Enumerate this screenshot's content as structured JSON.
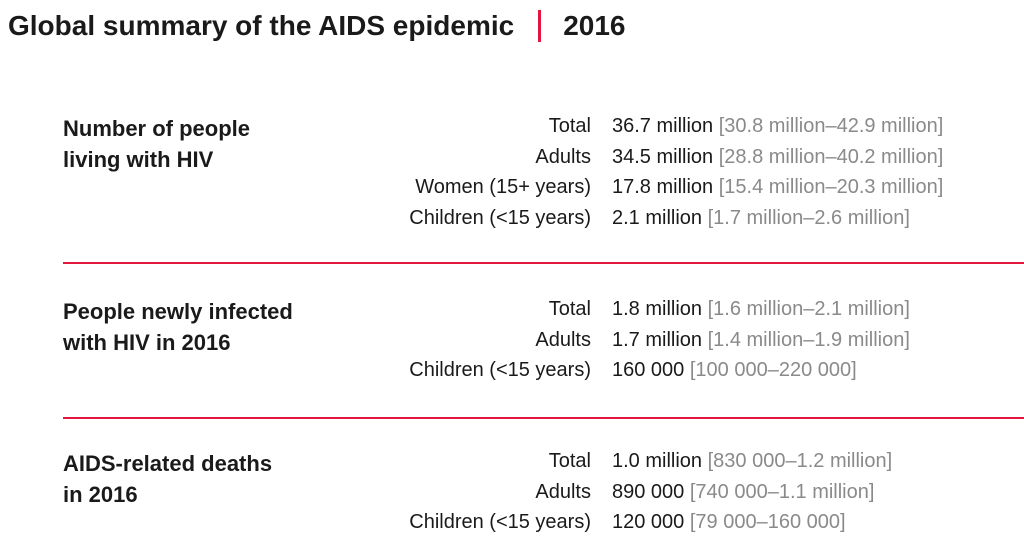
{
  "title": {
    "main": "Global summary of the AIDS epidemic",
    "year": "2016",
    "separator_color": "#e3173e"
  },
  "sections": [
    {
      "label_line1": "Number of people",
      "label_line2": "living with HIV",
      "rows": [
        {
          "label": "Total",
          "value": "36.7 million",
          "range": "[30.8 million–42.9 million]"
        },
        {
          "label": "Adults",
          "value": "34.5 million",
          "range": "[28.8 million–40.2 million]"
        },
        {
          "label": "Women (15+ years)",
          "value": "17.8 million",
          "range": "[15.4 million–20.3 million]"
        },
        {
          "label": "Children (<15 years)",
          "value": "2.1 million",
          "range": "[1.7 million–2.6 million]"
        }
      ]
    },
    {
      "label_line1": "People newly infected",
      "label_line2": "with HIV in 2016",
      "rows": [
        {
          "label": "Total",
          "value": "1.8 million",
          "range": "[1.6 million–2.1 million]"
        },
        {
          "label": "Adults",
          "value": "1.7 million",
          "range": "[1.4 million–1.9 million]"
        },
        {
          "label": "Children (<15 years)",
          "value": "160 000",
          "range": "[100 000–220 000]"
        }
      ]
    },
    {
      "label_line1": "AIDS-related deaths",
      "label_line2": "in 2016",
      "rows": [
        {
          "label": "Total",
          "value": "1.0 million",
          "range": "[830 000–1.2 million]"
        },
        {
          "label": "Adults",
          "value": "890 000",
          "range": "[740 000–1.1 million]"
        },
        {
          "label": "Children (<15 years)",
          "value": "120 000",
          "range": "[79 000–160 000]"
        }
      ]
    }
  ]
}
